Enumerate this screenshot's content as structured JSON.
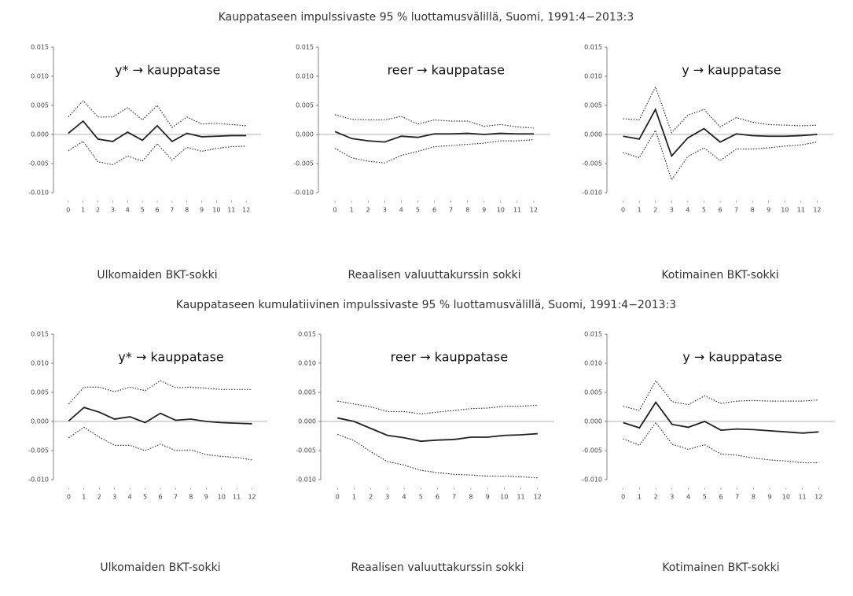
{
  "headings": [
    "Kauppataseen impulssivaste 95 % luottamusvälillä, Suomi, 1991:4−2013:3",
    "Kauppataseen kumulatiivinen impulssivaste 95 % luottamusvälillä, Suomi, 1991:4−2013:3"
  ],
  "chart_data": [
    {
      "type": "line",
      "annotation": "y* → kauppatase",
      "caption": "Ulkomaiden BKT-sokki",
      "x": [
        0,
        1,
        2,
        3,
        4,
        5,
        6,
        7,
        8,
        9,
        10,
        11,
        12
      ],
      "xlim": [
        -1,
        13
      ],
      "xticks": [
        0,
        1,
        2,
        3,
        4,
        5,
        6,
        7,
        8,
        9,
        10,
        11,
        12
      ],
      "ylim": [
        -0.01,
        0.015
      ],
      "yticks": [
        0.015,
        {
          "value": 0.01,
          "label": "0.010"
        },
        0.005,
        {
          "value": 0,
          "label": "0.000"
        },
        -0.005,
        {
          "value": -0.01,
          "label": "-0.010"
        }
      ],
      "series": [
        {
          "color": "#333",
          "dash": "dotted",
          "values": [
            -0.0028,
            -0.0012,
            -0.0047,
            -0.0052,
            -0.0037,
            -0.0046,
            -0.0016,
            -0.0044,
            -0.0022,
            -0.0029,
            -0.0024,
            -0.0021,
            -0.002
          ]
        },
        {
          "color": "#222",
          "dash": "solid",
          "values": [
            0.0002,
            0.0023,
            -0.0008,
            -0.0012,
            0.0004,
            -0.001,
            0.0015,
            -0.0012,
            0.0002,
            -0.0004,
            -0.0003,
            -0.0002,
            -0.0002
          ]
        },
        {
          "color": "#333",
          "dash": "dotted",
          "values": [
            0.003,
            0.0058,
            0.003,
            0.003,
            0.0046,
            0.0025,
            0.005,
            0.0012,
            0.003,
            0.0018,
            0.0019,
            0.0017,
            0.0015
          ]
        }
      ]
    },
    {
      "type": "line",
      "annotation": "reer → kauppatase",
      "caption": "Reaalisen valuuttakurssin sokki",
      "x": [
        0,
        1,
        2,
        3,
        4,
        5,
        6,
        7,
        8,
        9,
        10,
        11,
        12
      ],
      "xlim": [
        -1,
        13
      ],
      "xticks": [
        0,
        1,
        2,
        3,
        4,
        5,
        6,
        7,
        8,
        9,
        10,
        11,
        12
      ],
      "ylim": [
        -0.01,
        0.015
      ],
      "yticks": [
        0.015,
        {
          "value": 0.01,
          "label": "0.010"
        },
        0.005,
        {
          "value": 0,
          "label": "0.000"
        },
        -0.005,
        {
          "value": -0.01,
          "label": "-0.010"
        }
      ],
      "series": [
        {
          "color": "#333",
          "dash": "dotted",
          "values": [
            -0.0024,
            -0.004,
            -0.0046,
            -0.0049,
            -0.0036,
            -0.0029,
            -0.0021,
            -0.0019,
            -0.0017,
            -0.0015,
            -0.0011,
            -0.0011,
            -0.0009
          ]
        },
        {
          "color": "#222",
          "dash": "solid",
          "values": [
            0.0005,
            -0.0007,
            -0.0011,
            -0.0013,
            -0.0003,
            -0.0005,
            0.0001,
            0.0001,
            0.0002,
            0,
            0.0002,
            0.0001,
            0.0001
          ]
        },
        {
          "color": "#333",
          "dash": "dotted",
          "values": [
            0.0034,
            0.0026,
            0.0025,
            0.0025,
            0.0031,
            0.0018,
            0.0025,
            0.0023,
            0.0023,
            0.0014,
            0.0017,
            0.0013,
            0.0011
          ]
        }
      ]
    },
    {
      "type": "line",
      "annotation": "y → kauppatase",
      "caption": "Kotimainen BKT-sokki",
      "x": [
        0,
        1,
        2,
        3,
        4,
        5,
        6,
        7,
        8,
        9,
        10,
        11,
        12
      ],
      "xlim": [
        -1,
        13
      ],
      "xticks": [
        0,
        1,
        2,
        3,
        4,
        5,
        6,
        7,
        8,
        9,
        10,
        11,
        12
      ],
      "ylim": [
        -0.01,
        0.015
      ],
      "yticks": [
        0.015,
        {
          "value": 0.01,
          "label": "0.010"
        },
        0.005,
        {
          "value": 0,
          "label": "0.000"
        },
        -0.005,
        {
          "value": -0.01,
          "label": "-0.010"
        }
      ],
      "series": [
        {
          "color": "#333",
          "dash": "dotted",
          "values": [
            -0.0031,
            -0.004,
            0.0007,
            -0.0078,
            -0.0038,
            -0.0023,
            -0.0045,
            -0.0025,
            -0.0025,
            -0.0023,
            -0.002,
            -0.0018,
            -0.0013
          ]
        },
        {
          "color": "#222",
          "dash": "solid",
          "values": [
            -0.0003,
            -0.0008,
            0.0043,
            -0.0037,
            -0.0006,
            0.001,
            -0.0013,
            0.0001,
            -0.0002,
            -0.0003,
            -0.0003,
            -0.0002,
            0
          ]
        },
        {
          "color": "#333",
          "dash": "dotted",
          "values": [
            0.0027,
            0.0025,
            0.0082,
            0.0003,
            0.0033,
            0.0043,
            0.0013,
            0.0029,
            0.0021,
            0.0017,
            0.0016,
            0.0015,
            0.0016
          ]
        }
      ]
    },
    {
      "type": "line",
      "annotation": "y* → kauppatase",
      "caption": "Ulkomaiden BKT-sokki",
      "x": [
        0,
        1,
        2,
        3,
        4,
        5,
        6,
        7,
        8,
        9,
        10,
        11,
        12
      ],
      "xlim": [
        -1,
        13
      ],
      "xticks": [
        0,
        1,
        2,
        3,
        4,
        5,
        6,
        7,
        8,
        9,
        10,
        11,
        12
      ],
      "ylim": [
        -0.01,
        0.015
      ],
      "yticks": [
        0.015,
        {
          "value": 0.01,
          "label": "0.010"
        },
        0.005,
        {
          "value": 0,
          "label": "0.000"
        },
        -0.005,
        {
          "value": -0.01,
          "label": "-0.010"
        }
      ],
      "series": [
        {
          "color": "#333",
          "dash": "dotted",
          "values": [
            -0.0028,
            -0.001,
            -0.0027,
            -0.0041,
            -0.0041,
            -0.005,
            -0.0039,
            -0.005,
            -0.0049,
            -0.0057,
            -0.006,
            -0.0062,
            -0.0066
          ]
        },
        {
          "color": "#222",
          "dash": "solid",
          "values": [
            0.0001,
            0.0024,
            0.0016,
            0.0004,
            0.0008,
            -0.0002,
            0.0014,
            0.0002,
            0.0004,
            0,
            -0.0002,
            -0.0003,
            -0.0004
          ]
        },
        {
          "color": "#333",
          "dash": "dotted",
          "values": [
            0.003,
            0.0059,
            0.0059,
            0.0051,
            0.0059,
            0.0053,
            0.007,
            0.0058,
            0.0059,
            0.0057,
            0.0055,
            0.0055,
            0.0055
          ]
        }
      ]
    },
    {
      "type": "line",
      "annotation": "reer → kauppatase",
      "caption": "Reaalisen valuuttakurssin sokki",
      "x": [
        0,
        1,
        2,
        3,
        4,
        5,
        6,
        7,
        8,
        9,
        10,
        11,
        12
      ],
      "xlim": [
        -1,
        13
      ],
      "xticks": [
        0,
        1,
        2,
        3,
        4,
        5,
        6,
        7,
        8,
        9,
        10,
        11,
        12
      ],
      "ylim": [
        -0.01,
        0.015
      ],
      "yticks": [
        0.015,
        {
          "value": 0.01,
          "label": "0.010"
        },
        0.005,
        {
          "value": 0,
          "label": "0.000"
        },
        -0.005,
        {
          "value": -0.01,
          "label": "-0.010"
        }
      ],
      "series": [
        {
          "color": "#333",
          "dash": "dotted",
          "values": [
            -0.0022,
            -0.0033,
            -0.0052,
            -0.0069,
            -0.0075,
            -0.0084,
            -0.0088,
            -0.0091,
            -0.0092,
            -0.0094,
            -0.0094,
            -0.0095,
            -0.0097
          ]
        },
        {
          "color": "#222",
          "dash": "solid",
          "values": [
            0.0006,
            0,
            -0.0012,
            -0.0024,
            -0.0028,
            -0.0034,
            -0.0032,
            -0.0031,
            -0.0027,
            -0.0027,
            -0.0024,
            -0.0023,
            -0.0021
          ]
        },
        {
          "color": "#333",
          "dash": "dotted",
          "values": [
            0.0035,
            0.003,
            0.0025,
            0.0017,
            0.0017,
            0.0013,
            0.0016,
            0.0019,
            0.0022,
            0.0023,
            0.0026,
            0.0026,
            0.0028
          ]
        }
      ]
    },
    {
      "type": "line",
      "annotation": "y → kauppatase",
      "caption": "Kotimainen BKT-sokki",
      "x": [
        0,
        1,
        2,
        3,
        4,
        5,
        6,
        7,
        8,
        9,
        10,
        11,
        12
      ],
      "xlim": [
        -1,
        13
      ],
      "xticks": [
        0,
        1,
        2,
        3,
        4,
        5,
        6,
        7,
        8,
        9,
        10,
        11,
        12
      ],
      "ylim": [
        -0.01,
        0.015
      ],
      "yticks": [
        0.015,
        {
          "value": 0.01,
          "label": "0.010"
        },
        0.005,
        {
          "value": 0,
          "label": "0.000"
        },
        -0.005,
        {
          "value": -0.01,
          "label": "-0.010"
        }
      ],
      "series": [
        {
          "color": "#333",
          "dash": "dotted",
          "values": [
            -0.003,
            -0.0041,
            -0.0002,
            -0.0039,
            -0.0048,
            -0.004,
            -0.0056,
            -0.0058,
            -0.0063,
            -0.0066,
            -0.0068,
            -0.0071,
            -0.0071
          ]
        },
        {
          "color": "#222",
          "dash": "solid",
          "values": [
            -0.0002,
            -0.0011,
            0.0033,
            -0.0005,
            -0.001,
            0,
            -0.0015,
            -0.0013,
            -0.0014,
            -0.0016,
            -0.0018,
            -0.002,
            -0.0018
          ]
        },
        {
          "color": "#333",
          "dash": "dotted",
          "values": [
            0.0026,
            0.0019,
            0.007,
            0.0034,
            0.0029,
            0.0044,
            0.0031,
            0.0035,
            0.0036,
            0.0035,
            0.0035,
            0.0035,
            0.0037
          ]
        }
      ]
    }
  ]
}
